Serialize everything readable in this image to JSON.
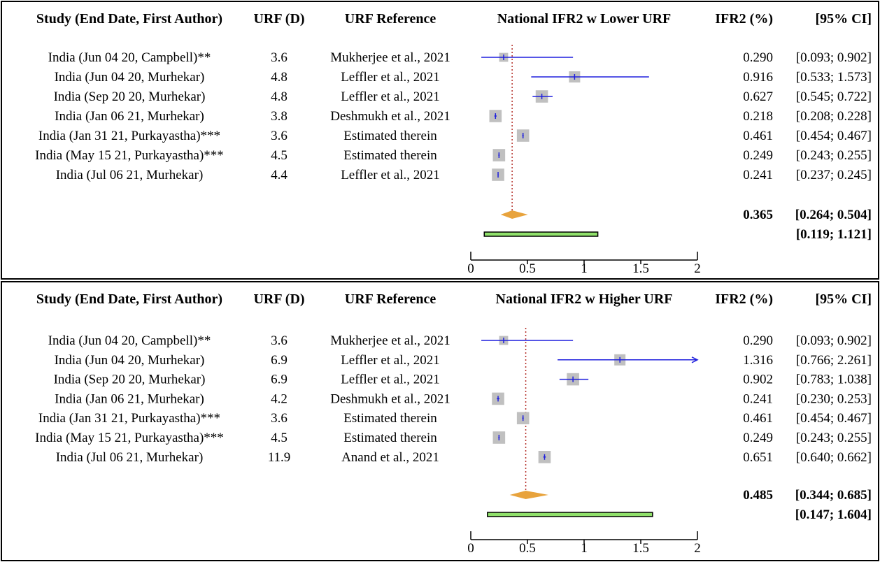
{
  "headers": {
    "study": "Study (End Date, First Author)",
    "urf": "URF (D)",
    "ref": "URF Reference",
    "ifr": "IFR2 (%)",
    "ci": "[95% CI]"
  },
  "colors": {
    "ci_line": "#1f1fdd",
    "box": "#c0c0c0",
    "diamond": "#e8a33c",
    "prediction_bar": "#8fe06a",
    "ref_line": "#b5312b"
  },
  "chart_data": [
    {
      "type": "forest",
      "title": "National IFR2 w Lower URF",
      "xlim": [
        0,
        2
      ],
      "ticks": [
        0,
        0.5,
        1,
        1.5,
        2
      ],
      "tick_labels": [
        "0",
        "0.5",
        "1",
        "1.5",
        "2"
      ],
      "studies": [
        {
          "label": "India (Jun 04 20, Campbell)**",
          "urf": "3.6",
          "ref": "Mukherjee et al., 2021",
          "est": 0.29,
          "lo": 0.093,
          "hi": 0.902,
          "est_text": "0.290",
          "ci_text": "[0.093; 0.902]",
          "weight": 0.35
        },
        {
          "label": "India (Jun 04 20, Murhekar)",
          "urf": "4.8",
          "ref": "Leffler et al., 2021",
          "est": 0.916,
          "lo": 0.533,
          "hi": 1.573,
          "est_text": "0.916",
          "ci_text": "[0.533; 1.573]",
          "weight": 0.75
        },
        {
          "label": "India (Sep 20 20, Murhekar)",
          "urf": "4.8",
          "ref": "Leffler et al., 2021",
          "est": 0.627,
          "lo": 0.545,
          "hi": 0.722,
          "est_text": "0.627",
          "ci_text": "[0.545; 0.722]",
          "weight": 0.95
        },
        {
          "label": "India (Jan 06 21, Murhekar)",
          "urf": "3.8",
          "ref": "Deshmukh et al., 2021",
          "est": 0.218,
          "lo": 0.208,
          "hi": 0.228,
          "est_text": "0.218",
          "ci_text": "[0.208; 0.228]",
          "weight": 0.95
        },
        {
          "label": "India (Jan 31 21, Purkayastha)***",
          "urf": "3.6",
          "ref": "Estimated therein",
          "est": 0.461,
          "lo": 0.454,
          "hi": 0.467,
          "est_text": "0.461",
          "ci_text": "[0.454; 0.467]",
          "weight": 0.95
        },
        {
          "label": "India (May 15 21, Purkayastha)***",
          "urf": "4.5",
          "ref": "Estimated therein",
          "est": 0.249,
          "lo": 0.243,
          "hi": 0.255,
          "est_text": "0.249",
          "ci_text": "[0.243; 0.255]",
          "weight": 0.95
        },
        {
          "label": "India (Jul 06 21, Murhekar)",
          "urf": "4.4",
          "ref": "Leffler et al., 2021",
          "est": 0.241,
          "lo": 0.237,
          "hi": 0.245,
          "est_text": "0.241",
          "ci_text": "[0.237; 0.245]",
          "weight": 0.95
        }
      ],
      "pooled": {
        "est": 0.365,
        "lo": 0.264,
        "hi": 0.504,
        "est_text": "0.365",
        "ci_text": "[0.264; 0.504]"
      },
      "prediction": {
        "lo": 0.119,
        "hi": 1.121,
        "ci_text": "[0.119; 1.121]"
      }
    },
    {
      "type": "forest",
      "title": "National IFR2 w Higher URF",
      "xlim": [
        0,
        2
      ],
      "ticks": [
        0,
        0.5,
        1,
        1.5,
        2
      ],
      "tick_labels": [
        "0",
        "0.5",
        "1",
        "1.5",
        "2"
      ],
      "studies": [
        {
          "label": "India (Jun 04 20, Campbell)**",
          "urf": "3.6",
          "ref": "Mukherjee et al., 2021",
          "est": 0.29,
          "lo": 0.093,
          "hi": 0.902,
          "est_text": "0.290",
          "ci_text": "[0.093; 0.902]",
          "weight": 0.35
        },
        {
          "label": "India (Jun 04 20, Murhekar)",
          "urf": "6.9",
          "ref": "Leffler et al., 2021",
          "est": 1.316,
          "lo": 0.766,
          "hi": 2.261,
          "est_text": "1.316",
          "ci_text": "[0.766; 2.261]",
          "weight": 0.75
        },
        {
          "label": "India (Sep 20 20, Murhekar)",
          "urf": "6.9",
          "ref": "Leffler et al., 2021",
          "est": 0.902,
          "lo": 0.783,
          "hi": 1.038,
          "est_text": "0.902",
          "ci_text": "[0.783; 1.038]",
          "weight": 0.95
        },
        {
          "label": "India (Jan 06 21, Murhekar)",
          "urf": "4.2",
          "ref": "Deshmukh et al., 2021",
          "est": 0.241,
          "lo": 0.23,
          "hi": 0.253,
          "est_text": "0.241",
          "ci_text": "[0.230; 0.253]",
          "weight": 0.95
        },
        {
          "label": "India (Jan 31 21, Purkayastha)***",
          "urf": "3.6",
          "ref": "Estimated therein",
          "est": 0.461,
          "lo": 0.454,
          "hi": 0.467,
          "est_text": "0.461",
          "ci_text": "[0.454; 0.467]",
          "weight": 0.95
        },
        {
          "label": "India (May 15 21, Purkayastha)***",
          "urf": "4.5",
          "ref": "Estimated therein",
          "est": 0.249,
          "lo": 0.243,
          "hi": 0.255,
          "est_text": "0.249",
          "ci_text": "[0.243; 0.255]",
          "weight": 0.95
        },
        {
          "label": "India (Jul 06 21, Murhekar)",
          "urf": "11.9",
          "ref": "Anand et al., 2021",
          "est": 0.651,
          "lo": 0.64,
          "hi": 0.662,
          "est_text": "0.651",
          "ci_text": "[0.640; 0.662]",
          "weight": 0.95
        }
      ],
      "pooled": {
        "est": 0.485,
        "lo": 0.344,
        "hi": 0.685,
        "est_text": "0.485",
        "ci_text": "[0.344; 0.685]"
      },
      "prediction": {
        "lo": 0.147,
        "hi": 1.604,
        "ci_text": "[0.147; 1.604]"
      }
    }
  ]
}
